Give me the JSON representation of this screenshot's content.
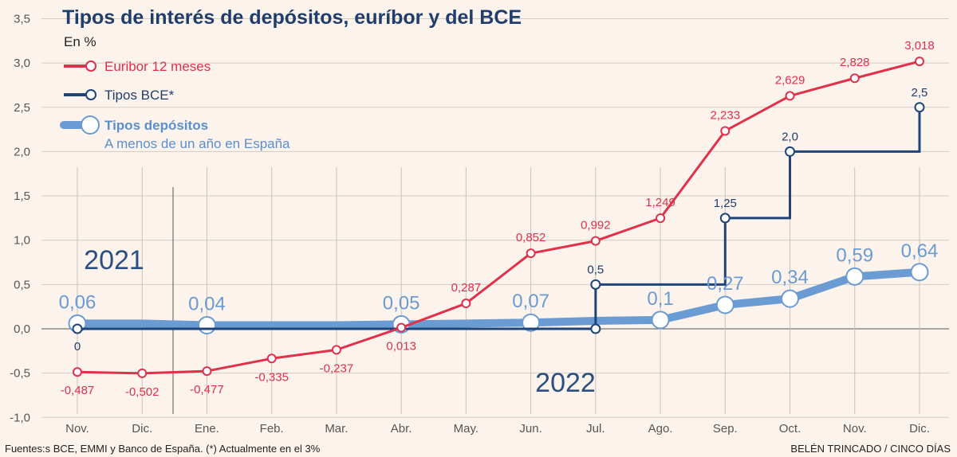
{
  "header": {
    "title": "Tipos de interés de depósitos, euríbor y del BCE",
    "subtitle": "En %"
  },
  "footer": {
    "source": "Fuentes:s BCE, EMMI y Banco de España. (*) Actualmente en el 3%",
    "credit": "BELÉN TRINCADO / CINCO DÍAS"
  },
  "chart_data": {
    "type": "line",
    "categories": [
      "Nov.",
      "Dic.",
      "Ene.",
      "Feb.",
      "Mar.",
      "Abr.",
      "May.",
      "Jun.",
      "Jul.",
      "Ago.",
      "Sep.",
      "Oct.",
      "Nov.",
      "Dic."
    ],
    "year_labels": [
      "2021",
      "2022"
    ],
    "ylim": [
      -1.0,
      3.5
    ],
    "yticks": [
      "3,5",
      "3,0",
      "2,5",
      "2,0",
      "1,5",
      "1,0",
      "0,5",
      "0,0",
      "-0,5",
      "-1,0"
    ],
    "series": [
      {
        "name": "Euribor 12 meses",
        "color": "#e0304a",
        "values": [
          -0.487,
          -0.502,
          -0.477,
          -0.335,
          -0.237,
          0.013,
          0.287,
          0.852,
          0.992,
          1.249,
          2.233,
          2.629,
          2.828,
          3.018
        ],
        "labels": [
          "-0,487",
          "-0,502",
          "-0,477",
          "-0,335",
          "-0,237",
          "0,013",
          "0,287",
          "0,852",
          "0,992",
          "1,249",
          "2,233",
          "2,629",
          "2,828",
          "3,018"
        ]
      },
      {
        "name": "Tipos BCE*",
        "color": "#1f4478",
        "values": [
          0,
          0,
          0,
          0,
          0,
          0,
          0,
          0,
          0.5,
          0.5,
          1.25,
          2.0,
          2.0,
          2.5
        ],
        "markers": [
          {
            "index": 0,
            "value": 0,
            "label": "0"
          },
          {
            "index": 8,
            "value": 0,
            "label": ""
          },
          {
            "index": 8,
            "value": 0.5,
            "label": "0,5"
          },
          {
            "index": 10,
            "value": 1.25,
            "label": "1,25"
          },
          {
            "index": 11,
            "value": 2.0,
            "label": "2,0"
          },
          {
            "index": 13,
            "value": 2.5,
            "label": "2,5"
          }
        ]
      },
      {
        "name": "Tipos depósitos",
        "subname": "A menos de un año en España",
        "color": "#6b9bd3",
        "values": [
          0.06,
          0.06,
          0.04,
          0.04,
          0.04,
          0.05,
          0.06,
          0.07,
          0.09,
          0.1,
          0.27,
          0.34,
          0.59,
          0.64
        ],
        "markers": [
          {
            "index": 0,
            "label": "0,06"
          },
          {
            "index": 2,
            "label": "0,04"
          },
          {
            "index": 5,
            "label": "0,05"
          },
          {
            "index": 7,
            "label": "0,07"
          },
          {
            "index": 9,
            "label": "0,1"
          },
          {
            "index": 10,
            "label": "0,27"
          },
          {
            "index": 11,
            "label": "0,34"
          },
          {
            "index": 12,
            "label": "0,59"
          },
          {
            "index": 13,
            "label": "0,64"
          }
        ]
      }
    ]
  }
}
